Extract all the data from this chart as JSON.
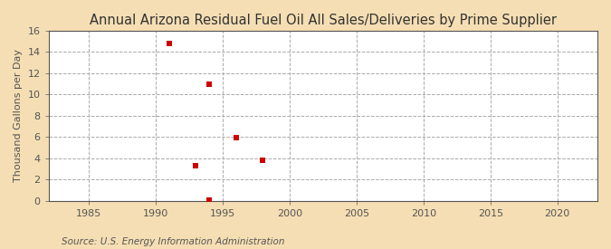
{
  "title": "Annual Arizona Residual Fuel Oil All Sales/Deliveries by Prime Supplier",
  "ylabel": "Thousand Gallons per Day",
  "xlabel": "",
  "background_color": "#f5deb3",
  "plot_bg_color": "#ffffff",
  "scatter_color": "#cc0000",
  "marker": "s",
  "marker_size": 5,
  "x_data": [
    1991,
    1993,
    1994,
    1994,
    1996,
    1998
  ],
  "y_data": [
    14.8,
    3.3,
    0.1,
    11.0,
    5.9,
    3.8
  ],
  "xlim": [
    1982,
    2023
  ],
  "ylim": [
    0,
    16
  ],
  "xticks": [
    1985,
    1990,
    1995,
    2000,
    2005,
    2010,
    2015,
    2020
  ],
  "yticks": [
    0,
    2,
    4,
    6,
    8,
    10,
    12,
    14,
    16
  ],
  "grid_color": "#aaaaaa",
  "grid_linestyle": "--",
  "grid_linewidth": 0.7,
  "source_text": "Source: U.S. Energy Information Administration",
  "title_fontsize": 10.5,
  "label_fontsize": 8,
  "tick_fontsize": 8,
  "source_fontsize": 7.5,
  "title_color": "#333333",
  "axis_color": "#555555",
  "text_color": "#555555"
}
